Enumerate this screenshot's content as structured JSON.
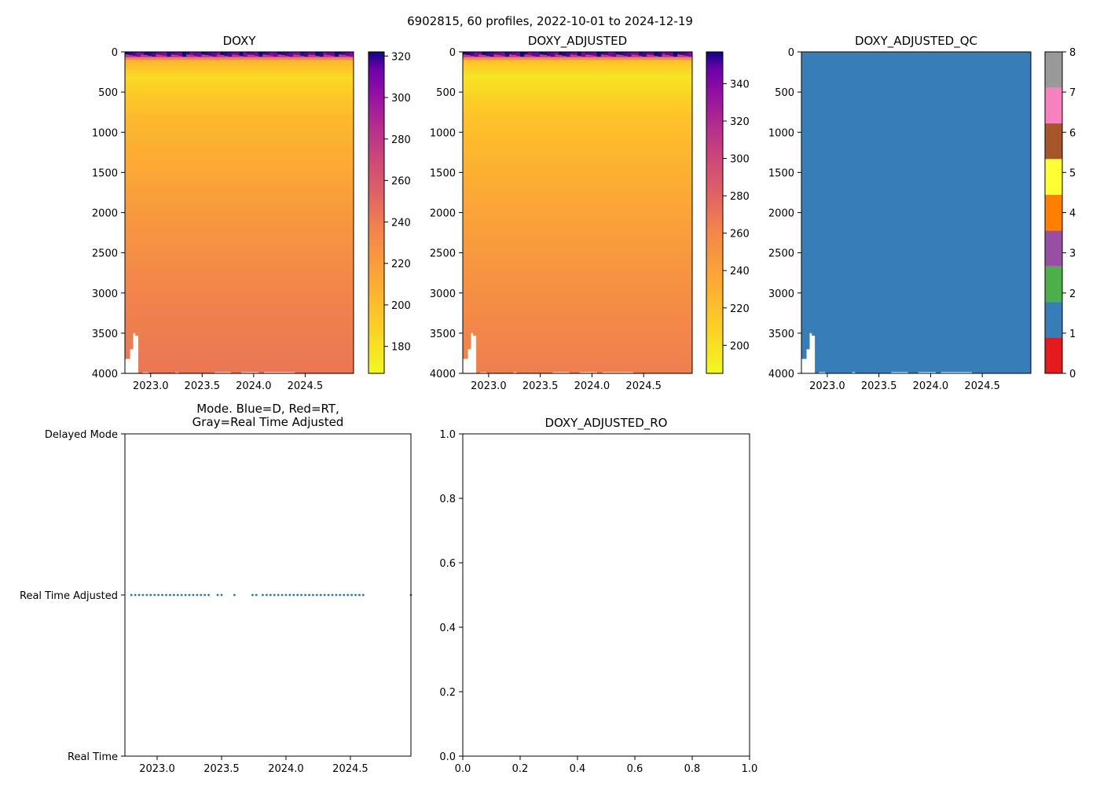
{
  "suptitle": "6902815, 60 profiles, 2022-10-01 to 2024-12-19",
  "chart_data": [
    {
      "id": "doxy",
      "type": "heatmap",
      "title": "DOXY",
      "x_ticks": [
        "2023.0",
        "2023.5",
        "2024.0",
        "2024.5"
      ],
      "x_tick_values": [
        2023.0,
        2023.5,
        2024.0,
        2024.5
      ],
      "xlim": [
        2022.75,
        2024.97
      ],
      "y_ticks": [
        "0",
        "500",
        "1000",
        "1500",
        "2000",
        "2500",
        "3000",
        "3500",
        "4000"
      ],
      "y_tick_values": [
        0,
        500,
        1000,
        1500,
        2000,
        2500,
        3000,
        3500,
        4000
      ],
      "ylim": [
        4000,
        0
      ],
      "colorbar": {
        "colormap": "plasma_r",
        "range": [
          167,
          322
        ],
        "ticks": [
          "180",
          "200",
          "220",
          "240",
          "260",
          "280",
          "300",
          "320"
        ],
        "tick_values": [
          180,
          200,
          220,
          240,
          260,
          280,
          300,
          320
        ]
      },
      "depth_profile": [
        [
          0,
          320
        ],
        [
          60,
          250
        ],
        [
          100,
          195
        ],
        [
          300,
          178
        ],
        [
          800,
          192
        ],
        [
          2000,
          208
        ],
        [
          3000,
          218
        ],
        [
          4000,
          226
        ]
      ]
    },
    {
      "id": "doxy-adjusted",
      "type": "heatmap",
      "title": "DOXY_ADJUSTED",
      "x_ticks": [
        "2023.0",
        "2023.5",
        "2024.0",
        "2024.5"
      ],
      "x_tick_values": [
        2023.0,
        2023.5,
        2024.0,
        2024.5
      ],
      "xlim": [
        2022.75,
        2024.97
      ],
      "y_ticks": [
        "0",
        "500",
        "1000",
        "1500",
        "2000",
        "2500",
        "3000",
        "3500",
        "4000"
      ],
      "y_tick_values": [
        0,
        500,
        1000,
        1500,
        2000,
        2500,
        3000,
        3500,
        4000
      ],
      "ylim": [
        4000,
        0
      ],
      "colorbar": {
        "colormap": "plasma_r",
        "range": [
          185,
          357
        ],
        "ticks": [
          "200",
          "220",
          "240",
          "260",
          "280",
          "300",
          "320",
          "340"
        ],
        "tick_values": [
          200,
          220,
          240,
          260,
          280,
          300,
          320,
          340
        ]
      },
      "depth_profile": [
        [
          0,
          350
        ],
        [
          60,
          275
        ],
        [
          100,
          210
        ],
        [
          300,
          193
        ],
        [
          800,
          208
        ],
        [
          2000,
          225
        ],
        [
          3000,
          236
        ],
        [
          4000,
          245
        ]
      ]
    },
    {
      "id": "doxy-adjusted-qc",
      "type": "heatmap",
      "title": "DOXY_ADJUSTED_QC",
      "x_ticks": [
        "2023.0",
        "2023.5",
        "2024.0",
        "2024.5"
      ],
      "x_tick_values": [
        2023.0,
        2023.5,
        2024.0,
        2024.5
      ],
      "xlim": [
        2022.75,
        2024.97
      ],
      "y_ticks": [
        "0",
        "500",
        "1000",
        "1500",
        "2000",
        "2500",
        "3000",
        "3500",
        "4000"
      ],
      "y_tick_values": [
        0,
        500,
        1000,
        1500,
        2000,
        2500,
        3000,
        3500,
        4000
      ],
      "ylim": [
        4000,
        0
      ],
      "qc_value": 1,
      "colorbar": {
        "range": [
          0,
          8
        ],
        "ticks": [
          "0",
          "1",
          "2",
          "3",
          "4",
          "5",
          "6",
          "7",
          "8"
        ],
        "tick_values": [
          0,
          1,
          2,
          3,
          4,
          5,
          6,
          7,
          8
        ],
        "colors": [
          "#e41a1c",
          "#377eb8",
          "#4daf4a",
          "#984ea3",
          "#ff7f00",
          "#ffff33",
          "#a65628",
          "#f781bf",
          "#999999"
        ]
      }
    },
    {
      "id": "mode",
      "type": "scatter",
      "title_lines": [
        "Mode. Blue=D, Red=RT,",
        "Gray=Real Time Adjusted"
      ],
      "x_ticks": [
        "2023.0",
        "2023.5",
        "2024.0",
        "2024.5"
      ],
      "x_tick_values": [
        2023.0,
        2023.5,
        2024.0,
        2024.5
      ],
      "xlim": [
        2022.75,
        2024.97
      ],
      "y_ticks": [
        "Real Time",
        "Real Time Adjusted",
        "Delayed Mode"
      ],
      "y_tick_values": [
        0,
        1,
        2
      ],
      "ylim": [
        0,
        2
      ],
      "color": "#1f77b4",
      "points_x": [
        2022.8,
        2022.83,
        2022.86,
        2022.89,
        2022.92,
        2022.95,
        2022.98,
        2023.01,
        2023.04,
        2023.07,
        2023.1,
        2023.13,
        2023.16,
        2023.19,
        2023.22,
        2023.25,
        2023.28,
        2023.31,
        2023.34,
        2023.37,
        2023.4,
        2023.47,
        2023.5,
        2023.6,
        2023.74,
        2023.77,
        2023.82,
        2023.85,
        2023.88,
        2023.91,
        2023.94,
        2023.97,
        2024.0,
        2024.03,
        2024.06,
        2024.09,
        2024.12,
        2024.15,
        2024.18,
        2024.21,
        2024.24,
        2024.27,
        2024.3,
        2024.33,
        2024.36,
        2024.39,
        2024.42,
        2024.45,
        2024.48,
        2024.51,
        2024.54,
        2024.57,
        2024.6,
        2024.97
      ],
      "points_y": 1
    },
    {
      "id": "doxy-adjusted-ro",
      "type": "scatter",
      "title": "DOXY_ADJUSTED_RO",
      "x_ticks": [
        "0.0",
        "0.2",
        "0.4",
        "0.6",
        "0.8",
        "1.0"
      ],
      "x_tick_values": [
        0,
        0.2,
        0.4,
        0.6,
        0.8,
        1.0
      ],
      "xlim": [
        0,
        1
      ],
      "y_ticks": [
        "0.0",
        "0.2",
        "0.4",
        "0.6",
        "0.8",
        "1.0"
      ],
      "y_tick_values": [
        0,
        0.2,
        0.4,
        0.6,
        0.8,
        1.0
      ],
      "ylim": [
        0,
        1
      ]
    }
  ]
}
